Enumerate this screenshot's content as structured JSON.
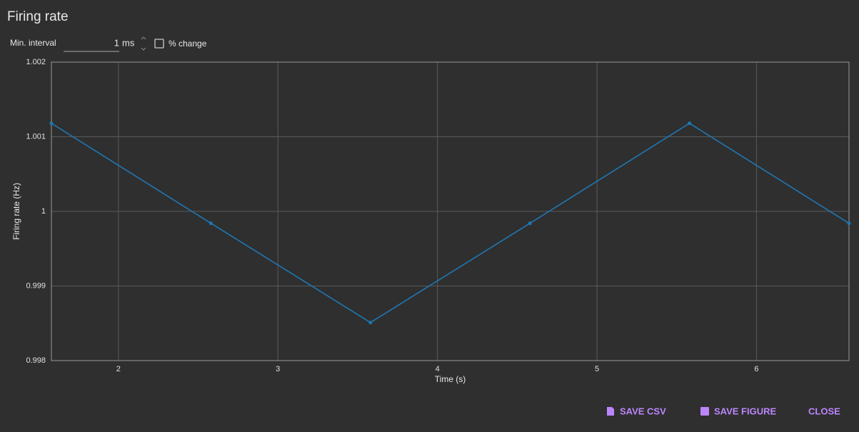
{
  "dialog": {
    "title": "Firing rate"
  },
  "controls": {
    "min_interval_label": "Min. interval",
    "min_interval_value": "1",
    "unit": "ms",
    "checkbox_label": "% change"
  },
  "chart_data": {
    "type": "line",
    "x_label": "Time (s)",
    "y_label": "Firing rate (Hz)",
    "x": [
      1.58,
      2.58,
      3.58,
      4.58,
      5.58,
      6.58
    ],
    "values": [
      1.00118,
      0.99984,
      0.99851,
      0.99984,
      1.00118,
      0.99984
    ],
    "color": "#1f77b4",
    "xlim": [
      1.58,
      6.58
    ],
    "xticks": [
      2,
      3,
      4,
      5,
      6
    ],
    "ylim": [
      0.998,
      1.002
    ],
    "yticks": [
      0.998,
      0.999,
      1,
      1.001,
      1.002
    ],
    "grid": true
  },
  "buttons": [
    "SAVE CSV",
    "SAVE FIGURE",
    "CLOSE"
  ]
}
